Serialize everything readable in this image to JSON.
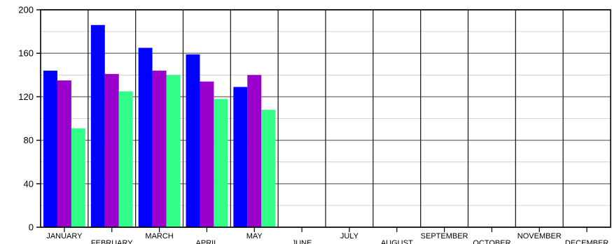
{
  "chart_data": {
    "type": "bar",
    "categories": [
      "JANUARY",
      "FEBRUARY",
      "MARCH",
      "APRIL",
      "MAY",
      "JUNE",
      "JULY",
      "AUGUST",
      "SEPTEMBER",
      "OCTOBER",
      "NOVEMBER",
      "DECEMBER"
    ],
    "series": [
      {
        "color": "#0000ff",
        "values": [
          144,
          186,
          165,
          159,
          129,
          null,
          null,
          null,
          null,
          null,
          null,
          null
        ]
      },
      {
        "color": "#9900cc",
        "values": [
          135,
          141,
          144,
          134,
          140,
          null,
          null,
          null,
          null,
          null,
          null,
          null
        ]
      },
      {
        "color": "#33ff88",
        "values": [
          91,
          125,
          140,
          118,
          108,
          null,
          null,
          null,
          null,
          null,
          null,
          null
        ]
      }
    ],
    "yticks": [
      "0",
      "40",
      "80",
      "120",
      "160",
      "200"
    ],
    "ylim": [
      0,
      200
    ],
    "grid": "horizontal-and-category-separators",
    "legend": "none"
  }
}
